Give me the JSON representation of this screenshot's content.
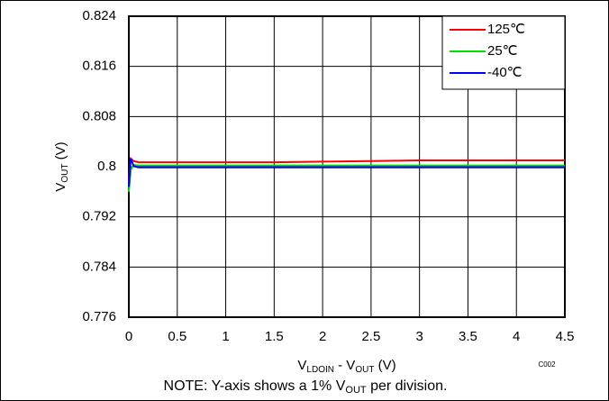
{
  "chart_data": {
    "type": "line",
    "y_label": {
      "main": "V",
      "sub": "OUT",
      "rest": " (V)"
    },
    "x_label": {
      "main": "V",
      "sub": "LDOIN",
      "mid": " - V",
      "sub2": "OUT",
      "rest": " (V)"
    },
    "figure_code": "C002",
    "note": {
      "main": "NOTE: Y-axis shows a 1% V",
      "sub": "OUT",
      "rest": " per division."
    },
    "x": [
      0,
      0.02,
      0.05,
      0.1,
      0.2,
      0.5,
      1,
      1.5,
      2,
      2.5,
      3,
      3.5,
      4,
      4.5
    ],
    "series": [
      {
        "name": "125℃",
        "color": "#ff0000",
        "values": [
          0.7975,
          0.8013,
          0.8009,
          0.8007,
          0.8007,
          0.8007,
          0.8007,
          0.8007,
          0.8008,
          0.8009,
          0.801,
          0.801,
          0.801,
          0.801
        ]
      },
      {
        "name": "25℃",
        "color": "#00e000",
        "values": [
          0.796,
          0.7995,
          0.8003,
          0.8002,
          0.8002,
          0.8002,
          0.8002,
          0.8002,
          0.8002,
          0.8002,
          0.8002,
          0.8002,
          0.8002,
          0.8002
        ]
      },
      {
        "name": "-40℃",
        "color": "#0000ff",
        "values": [
          0.7968,
          0.8013,
          0.8001,
          0.7999,
          0.7999,
          0.7999,
          0.7999,
          0.7999,
          0.7999,
          0.7999,
          0.7999,
          0.7999,
          0.7999,
          0.7999
        ]
      }
    ],
    "xlim": [
      0,
      4.5
    ],
    "xticks": [
      0,
      0.5,
      1,
      1.5,
      2,
      2.5,
      3,
      3.5,
      4,
      4.5
    ],
    "ylim": [
      0.776,
      0.824
    ],
    "yticks": [
      0.776,
      0.784,
      0.792,
      0.8,
      0.808,
      0.816,
      0.824
    ],
    "grid": true,
    "legend": "top-right"
  }
}
